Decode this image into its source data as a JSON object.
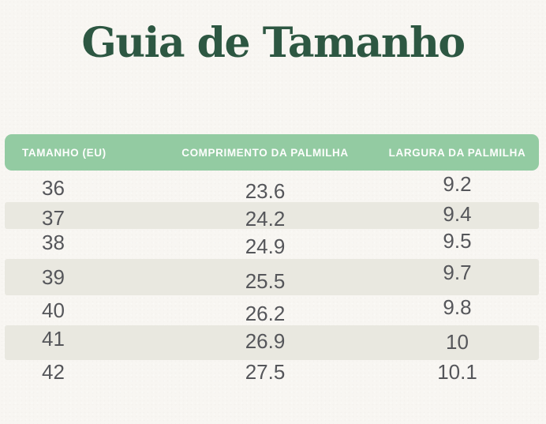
{
  "page": {
    "title": "Guia de Tamanho"
  },
  "colors": {
    "background": "#f8f6f2",
    "title_green": "#2d5742",
    "header_green": "#93cba2",
    "header_text": "#fdfefd",
    "stripe_beige": "#e9e8e0",
    "data_text_gray": "#55565a"
  },
  "table": {
    "headers": [
      "TAMANHO (EU)",
      "COMPRIMENTO DA PALMILHA",
      "LARGURA DA PALMILHA"
    ],
    "rows": [
      {
        "size": "36",
        "length": "23.6",
        "width": "9.2"
      },
      {
        "size": "37",
        "length": "24.2",
        "width": "9.4"
      },
      {
        "size": "38",
        "length": "24.9",
        "width": "9.5"
      },
      {
        "size": "39",
        "length": "25.5",
        "width": "9.7"
      },
      {
        "size": "40",
        "length": "26.2",
        "width": "9.8"
      },
      {
        "size": "41",
        "length": "26.9",
        "width": "10"
      },
      {
        "size": "42",
        "length": "27.5",
        "width": "10.1"
      }
    ]
  }
}
